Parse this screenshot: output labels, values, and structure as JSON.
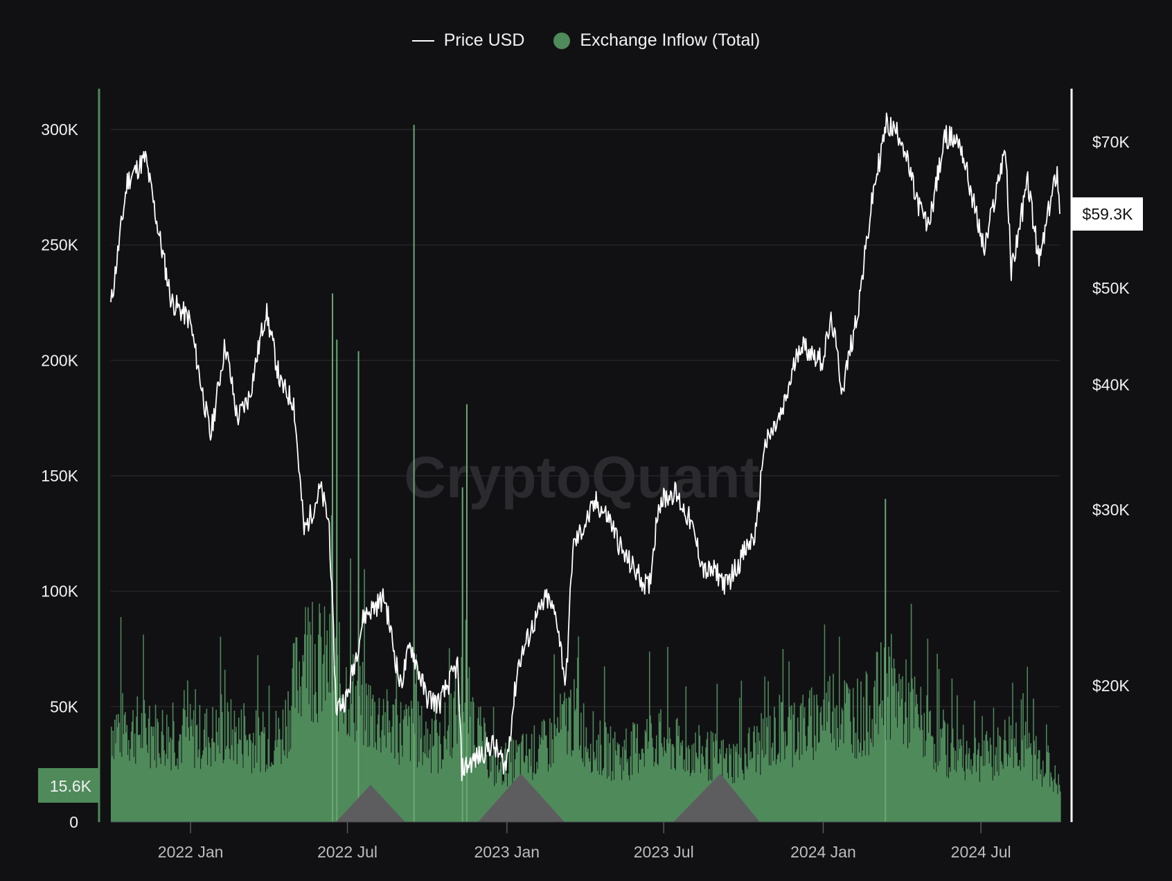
{
  "legend": {
    "price_label": "Price USD",
    "inflow_label": "Exchange Inflow (Total)"
  },
  "watermark": "CryptoQuant",
  "colors": {
    "background": "#111114",
    "price_line": "#ffffff",
    "inflow_bars": "#4f8a5b",
    "inflow_bar_light": "#6aa874",
    "grid": "#2a2a2e",
    "triangle": "#5d5d60"
  },
  "chart_data": {
    "type": "bar+line",
    "x_ticks": [
      "2022 Jan",
      "2022 Jul",
      "2023 Jan",
      "2023 Jul",
      "2024 Jan",
      "2024 Jul"
    ],
    "x_range": [
      "2021-10-01",
      "2024-09-30"
    ],
    "left_axis": {
      "ylim": [
        0,
        300000
      ],
      "ticks": [
        0,
        50000,
        100000,
        150000,
        200000,
        250000,
        300000
      ],
      "tick_labels": [
        "0",
        "50K",
        "100K",
        "150K",
        "200K",
        "250K",
        "300K"
      ],
      "current_value_label": "15.6K"
    },
    "right_axis": {
      "scale": "log",
      "ticks": [
        20000,
        30000,
        40000,
        50000,
        70000
      ],
      "tick_labels": [
        "$20K",
        "$30K",
        "$40K",
        "$50K",
        "$70K"
      ],
      "current_value_label": "$59.3K"
    },
    "series": [
      {
        "name": "Price USD",
        "type": "line",
        "axis": "right",
        "points": [
          [
            "2021-10-01",
            48000
          ],
          [
            "2021-10-20",
            64000
          ],
          [
            "2021-11-10",
            67500
          ],
          [
            "2021-11-25",
            57000
          ],
          [
            "2021-12-10",
            48500
          ],
          [
            "2021-12-31",
            46500
          ],
          [
            "2022-01-10",
            41500
          ],
          [
            "2022-01-24",
            35500
          ],
          [
            "2022-02-10",
            44000
          ],
          [
            "2022-02-24",
            37000
          ],
          [
            "2022-03-10",
            39000
          ],
          [
            "2022-03-29",
            47500
          ],
          [
            "2022-04-15",
            40000
          ],
          [
            "2022-04-30",
            38500
          ],
          [
            "2022-05-12",
            28500
          ],
          [
            "2022-05-31",
            31500
          ],
          [
            "2022-06-10",
            29000
          ],
          [
            "2022-06-18",
            19000
          ],
          [
            "2022-07-01",
            19500
          ],
          [
            "2022-07-20",
            23500
          ],
          [
            "2022-08-13",
            24500
          ],
          [
            "2022-08-31",
            20000
          ],
          [
            "2022-09-12",
            22000
          ],
          [
            "2022-09-30",
            19500
          ],
          [
            "2022-10-15",
            19200
          ],
          [
            "2022-11-05",
            21000
          ],
          [
            "2022-11-10",
            16500
          ],
          [
            "2022-11-30",
            17000
          ],
          [
            "2022-12-15",
            17500
          ],
          [
            "2022-12-31",
            16600
          ],
          [
            "2023-01-14",
            21000
          ],
          [
            "2023-01-31",
            23000
          ],
          [
            "2023-02-16",
            24500
          ],
          [
            "2023-02-28",
            23300
          ],
          [
            "2023-03-10",
            20000
          ],
          [
            "2023-03-18",
            27500
          ],
          [
            "2023-04-14",
            30500
          ],
          [
            "2023-04-30",
            29300
          ],
          [
            "2023-05-15",
            27100
          ],
          [
            "2023-06-14",
            25000
          ],
          [
            "2023-06-25",
            30500
          ],
          [
            "2023-07-13",
            31300
          ],
          [
            "2023-07-31",
            29300
          ],
          [
            "2023-08-17",
            26000
          ],
          [
            "2023-08-31",
            26000
          ],
          [
            "2023-09-11",
            25200
          ],
          [
            "2023-09-30",
            27000
          ],
          [
            "2023-10-16",
            28500
          ],
          [
            "2023-10-24",
            34500
          ],
          [
            "2023-11-15",
            37500
          ],
          [
            "2023-12-05",
            44000
          ],
          [
            "2023-12-31",
            42300
          ],
          [
            "2024-01-11",
            46500
          ],
          [
            "2024-01-23",
            39500
          ],
          [
            "2024-02-10",
            47500
          ],
          [
            "2024-02-28",
            62500
          ],
          [
            "2024-03-14",
            73000
          ],
          [
            "2024-03-31",
            71000
          ],
          [
            "2024-04-17",
            61500
          ],
          [
            "2024-05-01",
            57500
          ],
          [
            "2024-05-21",
            71000
          ],
          [
            "2024-06-07",
            70000
          ],
          [
            "2024-06-24",
            60000
          ],
          [
            "2024-07-05",
            54500
          ],
          [
            "2024-07-29",
            69500
          ],
          [
            "2024-08-05",
            52000
          ],
          [
            "2024-08-24",
            64000
          ],
          [
            "2024-09-06",
            53000
          ],
          [
            "2024-09-27",
            66000
          ],
          [
            "2024-09-30",
            59300
          ]
        ]
      },
      {
        "name": "Exchange Inflow (Total)",
        "type": "bar",
        "axis": "left",
        "points": [
          [
            "2021-10-01",
            45000
          ],
          [
            "2021-11-15",
            42000
          ],
          [
            "2021-12-15",
            40000
          ],
          [
            "2022-01-15",
            40000
          ],
          [
            "2022-02-15",
            42000
          ],
          [
            "2022-03-15",
            38000
          ],
          [
            "2022-04-15",
            40000
          ],
          [
            "2022-05-12",
            80000
          ],
          [
            "2022-06-15",
            70000
          ],
          [
            "2022-07-15",
            55000
          ],
          [
            "2022-08-15",
            45000
          ],
          [
            "2022-09-15",
            42000
          ],
          [
            "2022-10-15",
            35000
          ],
          [
            "2022-11-10",
            60000
          ],
          [
            "2022-12-15",
            25000
          ],
          [
            "2023-01-15",
            30000
          ],
          [
            "2023-02-15",
            35000
          ],
          [
            "2023-03-15",
            50000
          ],
          [
            "2023-04-15",
            35000
          ],
          [
            "2023-05-15",
            30000
          ],
          [
            "2023-06-15",
            40000
          ],
          [
            "2023-07-15",
            35000
          ],
          [
            "2023-08-15",
            32000
          ],
          [
            "2023-09-15",
            28000
          ],
          [
            "2023-10-15",
            35000
          ],
          [
            "2023-11-15",
            42000
          ],
          [
            "2023-12-15",
            45000
          ],
          [
            "2024-01-15",
            55000
          ],
          [
            "2024-02-15",
            48000
          ],
          [
            "2024-03-15",
            65000
          ],
          [
            "2024-04-15",
            50000
          ],
          [
            "2024-05-15",
            35000
          ],
          [
            "2024-06-15",
            32000
          ],
          [
            "2024-07-15",
            30000
          ],
          [
            "2024-08-05",
            40000
          ],
          [
            "2024-09-15",
            25000
          ],
          [
            "2024-09-30",
            15600
          ]
        ],
        "spikes": [
          [
            "2022-06-13",
            229000
          ],
          [
            "2022-06-18",
            209000
          ],
          [
            "2022-07-13",
            204000
          ],
          [
            "2022-09-15",
            302000
          ],
          [
            "2022-11-10",
            145000
          ],
          [
            "2022-11-15",
            181000
          ],
          [
            "2024-03-12",
            140000
          ]
        ]
      }
    ],
    "grid": true
  }
}
